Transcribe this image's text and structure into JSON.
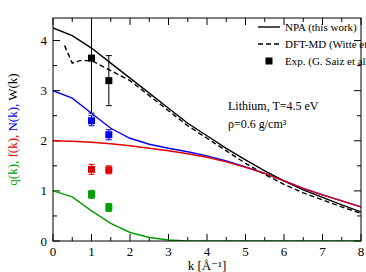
{
  "chart_data": {
    "type": "line",
    "x_label": "k [Å⁻¹]",
    "y_label": [
      {
        "text": "q(k), ",
        "color": "#00a000"
      },
      {
        "text": "f(k), ",
        "color": "#e00000"
      },
      {
        "text": "N(k), ",
        "color": "#0000ee"
      },
      {
        "text": "W(k)",
        "color": "#000000"
      }
    ],
    "annotations": [
      "Lithium, T=4.5 eV",
      "ρ=0.6 g/cm³"
    ],
    "xlim": [
      0,
      8
    ],
    "ylim": [
      0,
      4.45
    ],
    "xticks": [
      0,
      1,
      2,
      3,
      4,
      5,
      6,
      7,
      8
    ],
    "yticks": [
      0,
      1,
      2,
      3,
      4
    ],
    "legend": "upper right",
    "series": [
      {
        "name": "NPA (this work)",
        "type": "line",
        "line_style": "solid",
        "color": "#000000",
        "x": [
          0,
          0.5,
          1,
          1.5,
          2,
          2.5,
          3,
          3.5,
          4,
          4.5,
          5,
          5.5,
          6,
          6.5,
          7,
          7.5,
          8
        ],
        "values": [
          4.25,
          4.1,
          3.85,
          3.55,
          3.25,
          2.95,
          2.65,
          2.35,
          2.1,
          1.85,
          1.62,
          1.4,
          1.2,
          1.02,
          0.87,
          0.72,
          0.58
        ]
      },
      {
        "name": "DFT-MD (Witte et al.)",
        "type": "line",
        "line_style": "dashed",
        "color": "#000000",
        "x": [
          0.3,
          0.5,
          0.7,
          1,
          1.5,
          2,
          2.5,
          3,
          3.5,
          4,
          4.5,
          5,
          5.5,
          6,
          6.5,
          7,
          7.5,
          8
        ],
        "values": [
          3.9,
          3.55,
          3.6,
          3.6,
          3.4,
          3.2,
          2.9,
          2.6,
          2.3,
          2.05,
          1.8,
          1.55,
          1.33,
          1.13,
          0.96,
          0.82,
          0.68,
          0.55
        ]
      },
      {
        "name": "Exp. (G. Saiz et al.)",
        "type": "scatter",
        "marker": "square",
        "color": "#000000",
        "x": [
          1,
          1.45
        ],
        "values": [
          3.65,
          3.2
        ],
        "error": [
          1.1,
          0.5
        ]
      },
      {
        "type": "line",
        "line_style": "solid",
        "color": "#0000ee",
        "x": [
          0,
          0.5,
          1,
          1.5,
          2,
          2.5,
          3,
          3.5,
          4,
          4.5,
          5,
          5.5,
          6,
          6.5,
          7,
          7.5,
          8
        ],
        "values": [
          3.0,
          2.85,
          2.55,
          2.25,
          2.05,
          1.93,
          1.85,
          1.78,
          1.7,
          1.6,
          1.48,
          1.35,
          1.2,
          1.05,
          0.92,
          0.8,
          0.68
        ]
      },
      {
        "type": "scatter",
        "marker": "square",
        "color": "#0000ee",
        "x": [
          1,
          1.45
        ],
        "values": [
          2.4,
          2.12
        ],
        "error": [
          0.1,
          0.1
        ]
      },
      {
        "type": "line",
        "line_style": "solid",
        "color": "#e00000",
        "x": [
          0,
          0.5,
          1,
          1.5,
          2,
          2.5,
          3,
          3.5,
          4,
          4.5,
          5,
          5.5,
          6,
          6.5,
          7,
          7.5,
          8
        ],
        "values": [
          2.0,
          1.99,
          1.97,
          1.94,
          1.9,
          1.85,
          1.8,
          1.74,
          1.67,
          1.58,
          1.47,
          1.35,
          1.2,
          1.05,
          0.92,
          0.8,
          0.68
        ]
      },
      {
        "type": "scatter",
        "marker": "square",
        "color": "#e00000",
        "x": [
          1,
          1.45
        ],
        "values": [
          1.43,
          1.42
        ],
        "error": [
          0.1,
          0.08
        ]
      },
      {
        "type": "line",
        "line_style": "solid",
        "color": "#00a000",
        "x": [
          0,
          0.5,
          1,
          1.5,
          2,
          2.5,
          3,
          3.5,
          4,
          4.5,
          5,
          5.5,
          6,
          6.5,
          7,
          7.5,
          8
        ],
        "values": [
          1.0,
          0.88,
          0.6,
          0.35,
          0.17,
          0.07,
          0.02,
          0.0,
          0.0,
          0.0,
          0.0,
          0.0,
          0.0,
          0.0,
          0.0,
          0.0,
          0.0
        ]
      },
      {
        "type": "scatter",
        "marker": "square",
        "color": "#00a000",
        "x": [
          1,
          1.45
        ],
        "values": [
          0.93,
          0.67
        ],
        "error": [
          0.08,
          0.08
        ]
      }
    ]
  }
}
